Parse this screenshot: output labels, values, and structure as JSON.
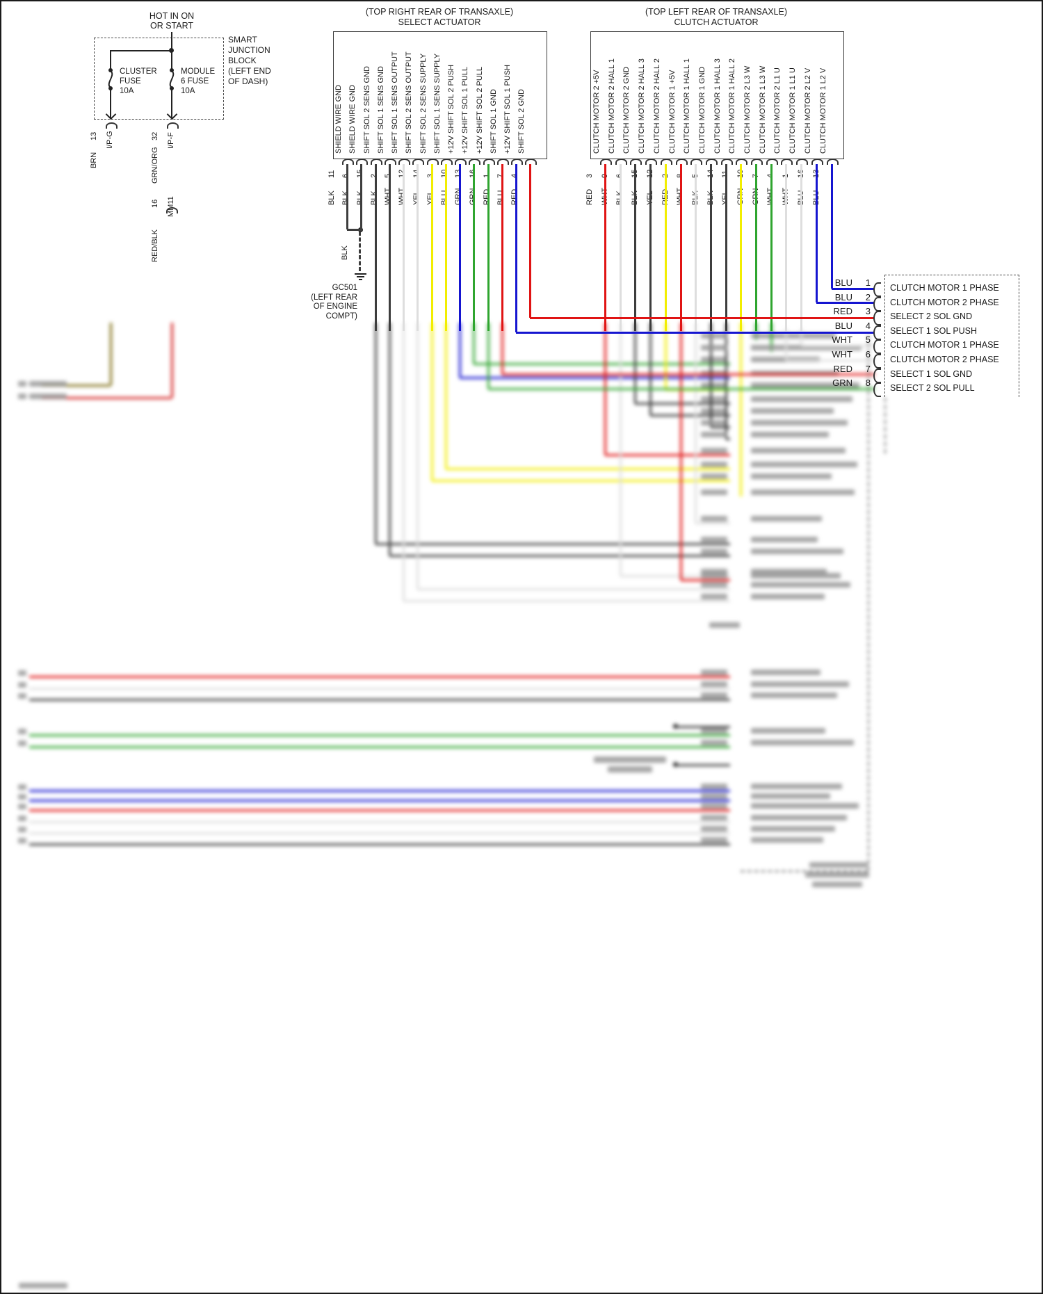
{
  "labels": {
    "hot_feed": "HOT IN ON\nOR START"
  },
  "smart_junction_block": {
    "label": "SMART\nJUNCTION\nBLOCK\n(LEFT END\nOF DASH)",
    "fuses": [
      {
        "label": "CLUSTER\nFUSE\n10A"
      },
      {
        "label": "MODULE\n6 FUSE\n10A"
      }
    ]
  },
  "feeds": [
    {
      "pin": "13",
      "connector": "I/P-G",
      "wire": "BRN"
    },
    {
      "pin": "32",
      "connector": "I/P-F",
      "wire": "GRN/ORG"
    },
    {
      "pin": "16",
      "connector": "MM11",
      "wire": "RED/BLK"
    }
  ],
  "select_actuator": {
    "location": "(TOP RIGHT REAR OF TRANSAXLE)",
    "title": "SELECT ACTUATOR",
    "pins": [
      {
        "num": "11",
        "color": "BLK",
        "signal": "SHIELD WIRE GND"
      },
      {
        "num": "6",
        "color": "BLK",
        "signal": "SHIELD WIRE GND"
      },
      {
        "num": "15",
        "color": "BLK",
        "signal": "SHIFT SOL 2 SENS GND"
      },
      {
        "num": "2",
        "color": "BLK",
        "signal": "SHIFT SOL 1 SENS GND"
      },
      {
        "num": "5",
        "color": "WHT",
        "signal": "SHIFT SOL 1 SENS OUTPUT"
      },
      {
        "num": "12",
        "color": "WHT",
        "signal": "SHIFT SOL 2 SENS OUTPUT"
      },
      {
        "num": "14",
        "color": "YEL",
        "signal": "SHIFT SOL 2 SENS SUPPLY"
      },
      {
        "num": "3",
        "color": "YEL",
        "signal": "SHIFT SOL 1 SENS SUPPLY"
      },
      {
        "num": "10",
        "color": "BLU",
        "signal": "+12V SHIFT SOL 2 PUSH"
      },
      {
        "num": "13",
        "color": "GRN",
        "signal": "+12V SHIFT SOL 1 PULL"
      },
      {
        "num": "16",
        "color": "GRN",
        "signal": "+12V SHIFT SOL 2 PULL"
      },
      {
        "num": "1",
        "color": "RED",
        "signal": "SHIFT SOL 1 GND"
      },
      {
        "num": "7",
        "color": "BLU",
        "signal": "+12V SHIFT SOL 1 PUSH"
      },
      {
        "num": "4",
        "color": "RED",
        "signal": "SHIFT SOL 2 GND"
      }
    ]
  },
  "clutch_actuator": {
    "location": "(TOP LEFT REAR OF TRANSAXLE)",
    "title": "CLUTCH ACTUATOR",
    "pins": [
      {
        "num": "3",
        "color": "RED",
        "signal": "CLUTCH MOTOR 2 +5V"
      },
      {
        "num": "9",
        "color": "WHT",
        "signal": "CLUTCH MOTOR 2 HALL 1"
      },
      {
        "num": "6",
        "color": "BLK",
        "signal": "CLUTCH MOTOR 2 GND"
      },
      {
        "num": "15",
        "color": "BLK",
        "signal": "CLUTCH MOTOR 2 HALL 3"
      },
      {
        "num": "12",
        "color": "YEL",
        "signal": "CLUTCH MOTOR 2 HALL 2"
      },
      {
        "num": "2",
        "color": "RED",
        "signal": "CLUTCH MOTOR 1 +5V"
      },
      {
        "num": "8",
        "color": "WHT",
        "signal": "CLUTCH MOTOR 1 HALL 1"
      },
      {
        "num": "5",
        "color": "BLK",
        "signal": "CLUTCH MOTOR 1 GND"
      },
      {
        "num": "14",
        "color": "BLK",
        "signal": "CLUTCH MOTOR 1 HALL 3"
      },
      {
        "num": "11",
        "color": "YEL",
        "signal": "CLUTCH MOTOR 1 HALL 2"
      },
      {
        "num": "10",
        "color": "GRN",
        "signal": "CLUTCH MOTOR 2 L3 W"
      },
      {
        "num": "7",
        "color": "GRN",
        "signal": "CLUTCH MOTOR 1 L3 W"
      },
      {
        "num": "4",
        "color": "WHT",
        "signal": "CLUTCH MOTOR 2 L1 U"
      },
      {
        "num": "1",
        "color": "WHT",
        "signal": "CLUTCH MOTOR 1 L1 U"
      },
      {
        "num": "16",
        "color": "BLU",
        "signal": "CLUTCH MOTOR 2 L2 V"
      },
      {
        "num": "13",
        "color": "BLU",
        "signal": "CLUTCH MOTOR 1 L2 V"
      }
    ]
  },
  "ground": {
    "code_label": "GC501\n(LEFT REAR\nOF ENGINE\nCOMPT)",
    "wire_color": "BLK"
  },
  "right_connector": {
    "rows": [
      {
        "color": "BLU",
        "pin": "1",
        "signal": "CLUTCH MOTOR 1 PHASE"
      },
      {
        "color": "BLU",
        "pin": "2",
        "signal": "CLUTCH MOTOR 2 PHASE"
      },
      {
        "color": "RED",
        "pin": "3",
        "signal": "SELECT 2 SOL GND"
      },
      {
        "color": "BLU",
        "pin": "4",
        "signal": "SELECT 1 SOL PUSH"
      },
      {
        "color": "WHT",
        "pin": "5",
        "signal": "CLUTCH MOTOR 1 PHASE"
      },
      {
        "color": "WHT",
        "pin": "6",
        "signal": "CLUTCH MOTOR 2 PHASE"
      },
      {
        "color": "RED",
        "pin": "7",
        "signal": "SELECT 1 SOL GND"
      },
      {
        "color": "GRN",
        "pin": "8",
        "signal": "SELECT 2 SOL PULL"
      }
    ]
  },
  "colors": {
    "BLK": "#3d3d3d",
    "WHT": "#dedede",
    "YEL": "#f2ee00",
    "GRN": "#2fa52f",
    "BLU": "#1515d0",
    "RED": "#e01414",
    "BRN": "#7c6b10",
    "GRN/ORG": "#66b32a",
    "RED/BLK": "#d41f1f"
  }
}
